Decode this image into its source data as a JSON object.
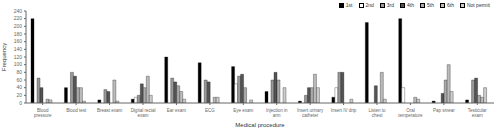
{
  "chart_data": {
    "type": "bar",
    "xlabel": "Medical procedure",
    "ylabel": "Frequency",
    "categories": [
      "Blood\npressure",
      "Blood test",
      "Breast exam",
      "Digital rectal\nexam",
      "Ear exam",
      "ECG",
      "Eye exam",
      "Injection in\narm",
      "Insert urinary\ncatheter",
      "Insert IV drip",
      "Listen to\nchest",
      "Oral\ntemperature",
      "Pap smear",
      "Testicular\nexam"
    ],
    "series": [
      {
        "name": "1st",
        "color": "#000000",
        "values": [
          220,
          40,
          8,
          10,
          120,
          105,
          95,
          30,
          5,
          15,
          210,
          220,
          5,
          8
        ]
      },
      {
        "name": "2nd",
        "color": "#ffffff",
        "values": [
          0,
          0,
          0,
          15,
          0,
          0,
          50,
          0,
          0,
          40,
          0,
          40,
          0,
          0
        ]
      },
      {
        "name": "3rd",
        "color": "#999999",
        "values": [
          65,
          80,
          35,
          20,
          65,
          60,
          70,
          60,
          20,
          80,
          0,
          0,
          0,
          60
        ]
      },
      {
        "name": "4th",
        "color": "#555555",
        "values": [
          40,
          70,
          30,
          50,
          55,
          55,
          75,
          80,
          40,
          80,
          45,
          0,
          25,
          65
        ]
      },
      {
        "name": "5th",
        "color": "#aaaaaa",
        "values": [
          0,
          40,
          0,
          40,
          45,
          0,
          40,
          60,
          40,
          0,
          0,
          0,
          60,
          20
        ]
      },
      {
        "name": "6th",
        "color": "#bbbbbb",
        "values": [
          10,
          40,
          60,
          70,
          30,
          15,
          0,
          0,
          75,
          0,
          80,
          15,
          100,
          15
        ]
      },
      {
        "name": "Not permit",
        "color": "#cccccc",
        "values": [
          8,
          5,
          5,
          20,
          10,
          15,
          8,
          40,
          40,
          10,
          10,
          10,
          30,
          40
        ]
      }
    ],
    "ylim": [
      0,
      240
    ],
    "yticks": [
      0,
      20,
      40,
      60,
      80,
      100,
      120,
      140,
      160,
      180,
      200,
      220,
      240
    ],
    "grid": false,
    "legend": "top"
  }
}
